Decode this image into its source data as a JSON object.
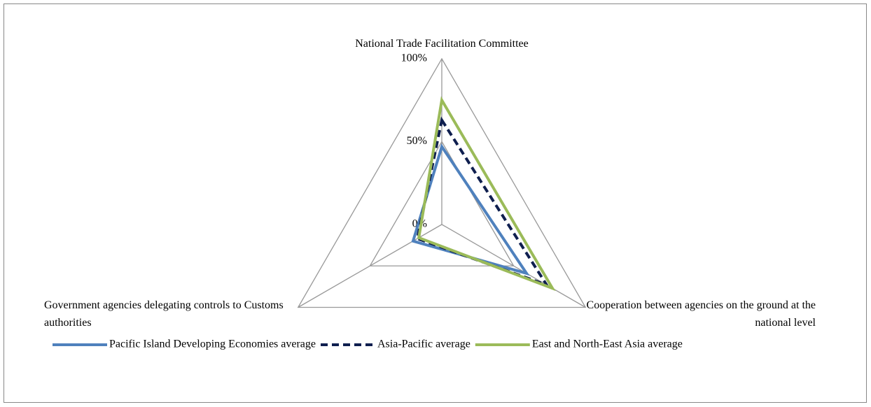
{
  "chart_data": {
    "type": "radar",
    "categories": [
      "National Trade Facilitation Committee",
      "Cooperation between agencies on the ground at the national level",
      "Government agencies delegating controls to Customs authorities"
    ],
    "rlim": [
      0,
      100
    ],
    "rticks": [
      {
        "value": 0,
        "label": "0%"
      },
      {
        "value": 50,
        "label": "50%"
      },
      {
        "value": 100,
        "label": "100%"
      }
    ],
    "grid": true,
    "legend": "bottom",
    "series": [
      {
        "name": "Pacific Island Developing Economies average",
        "color": "#4f81bd",
        "dash": false,
        "values": [
          47,
          59,
          20
        ]
      },
      {
        "name": "Asia-Pacific average",
        "color": "#0f1f4f",
        "dash": true,
        "values": [
          63,
          73,
          17
        ]
      },
      {
        "name": "East and North-East Asia average",
        "color": "#9bbb59",
        "dash": false,
        "values": [
          75,
          77,
          16
        ]
      }
    ]
  }
}
